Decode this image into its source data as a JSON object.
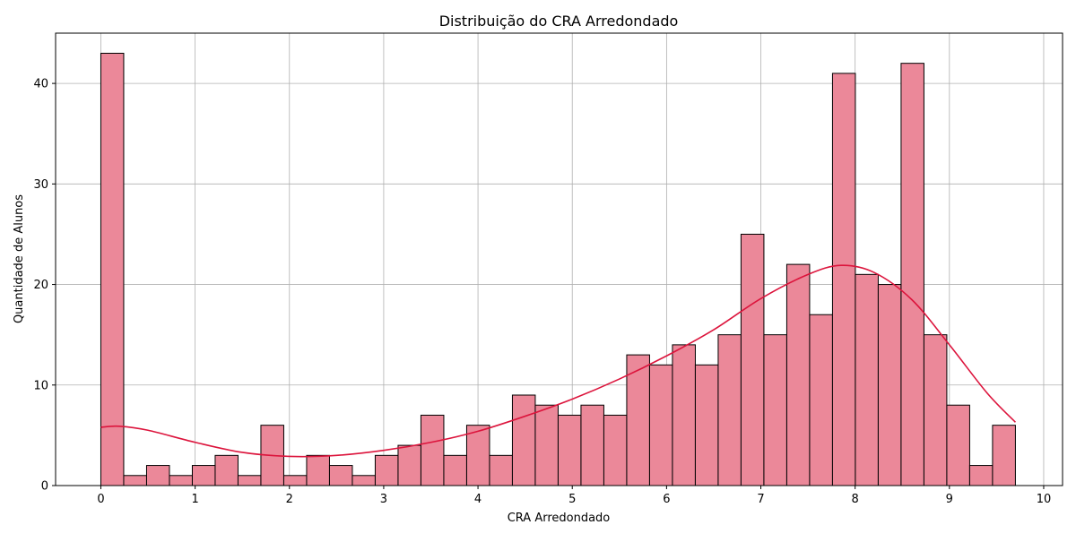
{
  "chart_data": {
    "type": "bar",
    "title": "Distribuição do CRA Arredondado",
    "xlabel": "CRA Arredondado",
    "ylabel": "Quantidade de Alunos",
    "xlim": [
      -0.48,
      10.2
    ],
    "ylim": [
      0,
      45
    ],
    "xticks": [
      "0",
      "1",
      "2",
      "3",
      "4",
      "5",
      "6",
      "7",
      "8",
      "9",
      "10"
    ],
    "yticks": [
      "0",
      "10",
      "20",
      "30",
      "40"
    ],
    "grid": true,
    "bin_start": 0,
    "bin_width": 0.2425,
    "values": [
      43,
      1,
      2,
      1,
      2,
      3,
      1,
      6,
      1,
      3,
      2,
      1,
      3,
      4,
      7,
      3,
      6,
      3,
      9,
      8,
      7,
      8,
      7,
      13,
      12,
      14,
      12,
      15,
      25,
      15,
      22,
      17,
      41,
      21,
      20,
      42,
      15,
      8,
      2,
      6
    ],
    "kde": {
      "x": [
        0,
        0.2,
        0.5,
        1.0,
        1.5,
        2.0,
        2.5,
        3.0,
        3.5,
        4.0,
        4.5,
        5.0,
        5.5,
        6.0,
        6.5,
        7.0,
        7.5,
        7.85,
        8.2,
        8.6,
        9.0,
        9.4,
        9.7
      ],
      "y": [
        5.8,
        5.9,
        5.5,
        4.3,
        3.3,
        2.9,
        3.0,
        3.5,
        4.3,
        5.4,
        6.9,
        8.6,
        10.6,
        12.9,
        15.5,
        18.6,
        21.0,
        21.9,
        21.2,
        18.5,
        14.0,
        9.2,
        6.3
      ]
    },
    "colors": {
      "bar_fill": "#eb8899",
      "bar_edge": "#000000",
      "kde_line": "#dc143c",
      "grid": "#b0b0b0"
    }
  }
}
